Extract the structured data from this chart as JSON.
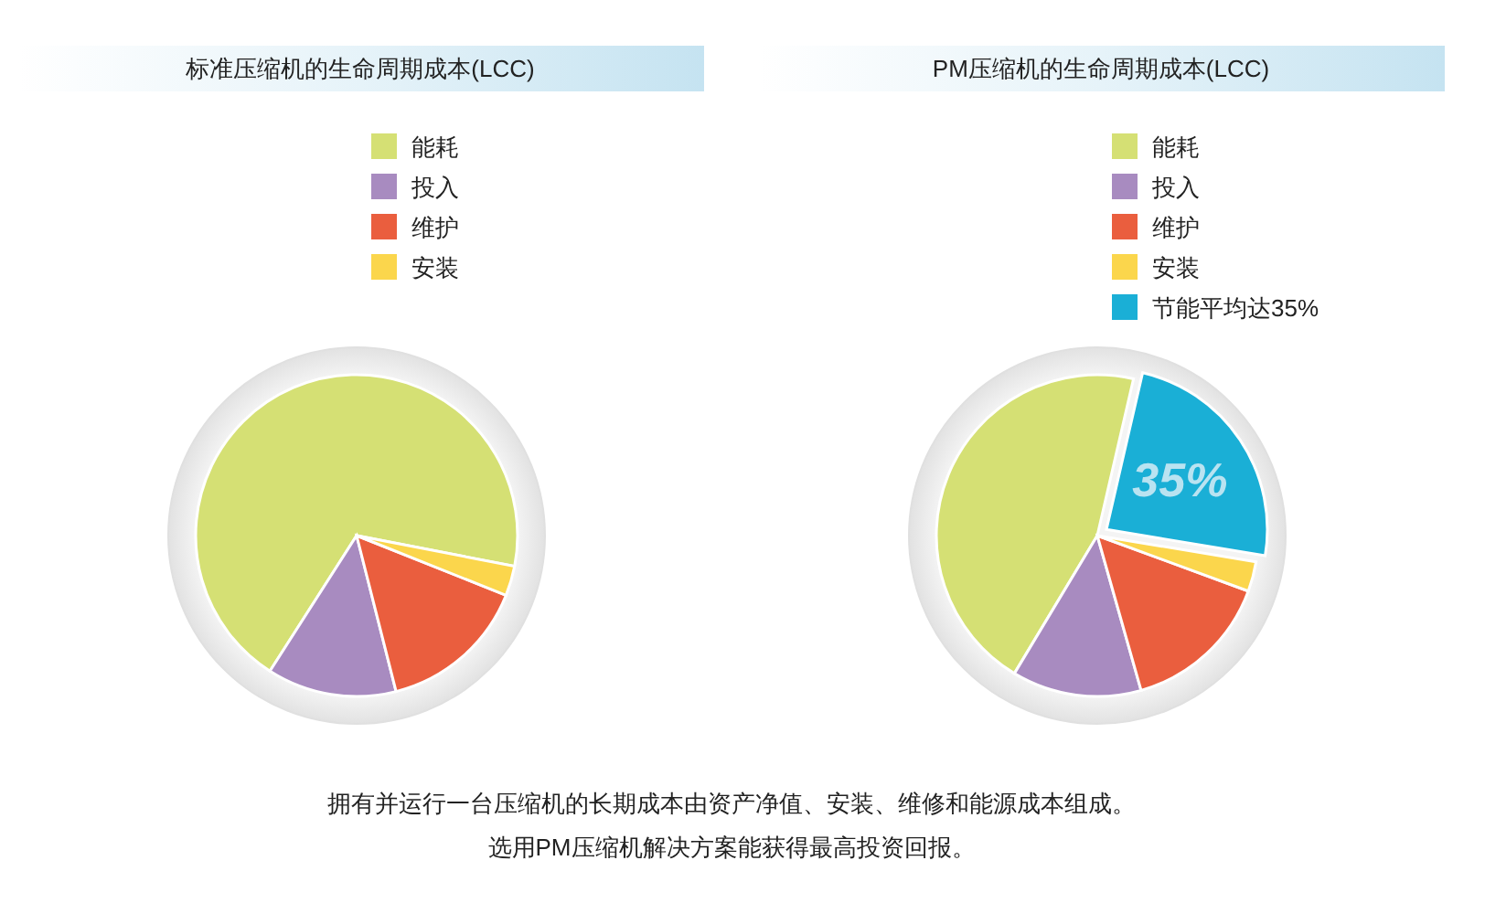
{
  "chart_data": [
    {
      "type": "pie",
      "title": "标准压缩机的生命周期成本(LCC)",
      "categories": [
        "能耗",
        "投入",
        "维护",
        "安装"
      ],
      "values": [
        69,
        13,
        15,
        3
      ],
      "colors": [
        "#d5e074",
        "#a88bc0",
        "#ea5e3e",
        "#fbd64c"
      ],
      "legend": "top",
      "annotations": [
        "拥有并运行一台压缩机的长期成本由资产净值、安装、维修和能源成本组成。",
        "选用PM压缩机解决方案能获得最高投资回报。"
      ]
    },
    {
      "type": "pie",
      "title": "PM压缩机的生命周期成本(LCC)",
      "categories": [
        "能耗",
        "投入",
        "维护",
        "安装",
        "节能平均达35%"
      ],
      "values": [
        45,
        13,
        15,
        3,
        24
      ],
      "colors": [
        "#d5e074",
        "#a88bc0",
        "#ea5e3e",
        "#fbd64c",
        "#1aafd6"
      ],
      "legend": "top",
      "annotations": [
        {
          "text": "35%",
          "x": "节能平均达35%"
        }
      ]
    }
  ]
}
